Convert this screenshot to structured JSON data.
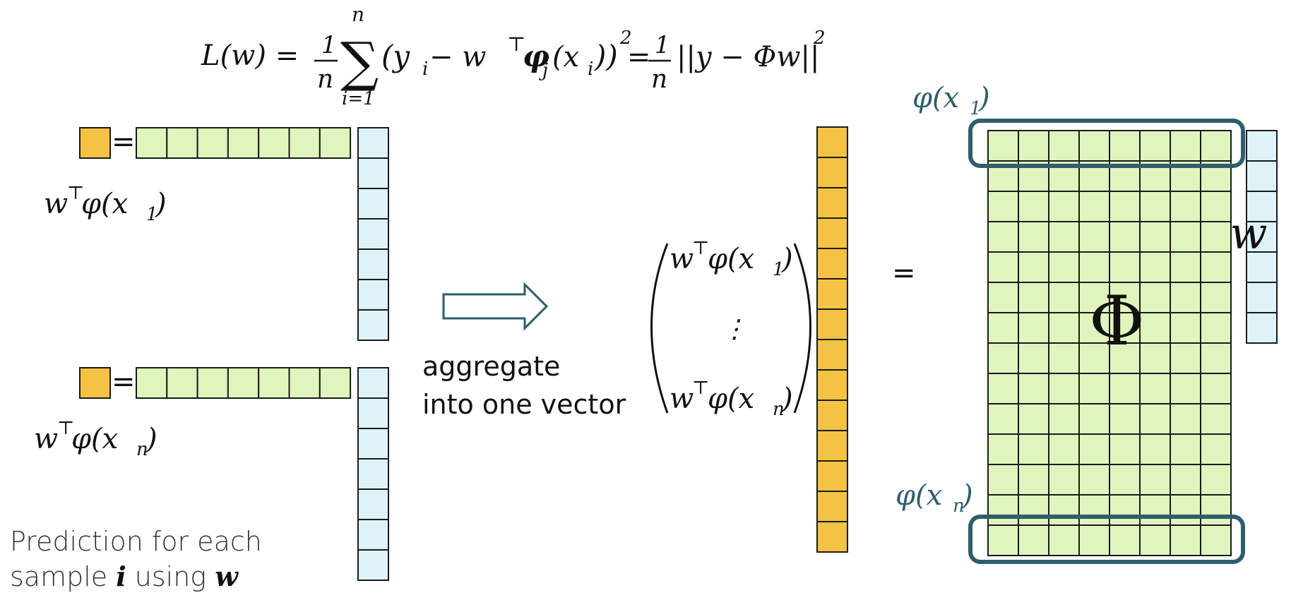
{
  "colors": {
    "orange": "#f5c343",
    "green": "#e0f5bd",
    "blue": "#def3f8",
    "stroke": "#1a1a1a",
    "teal": "#2e5e6b",
    "arrow": "#2e5e6b"
  },
  "equation": {
    "lhs": "L(w) = ",
    "frac1_num": "1",
    "frac1_den": "n",
    "sum_top": "n",
    "sum_bottom": "i=1",
    "body": "(y",
    "sub_i": "i",
    "minus_wT": " − w",
    "T": "⊤",
    "phi": "φ",
    "sub_j": "j",
    "x_open": "(x",
    "sub_i2": "i",
    "close": "))",
    "sq": "2",
    "eq2": " = ",
    "frac2_num": "1",
    "frac2_den": "n",
    "norm": "||y − Φw||",
    "sq2": "2"
  },
  "left": {
    "equals_top": "=",
    "equals_bottom": "=",
    "label_top": {
      "w": "w",
      "T": "⊤",
      "rest": "φ(x",
      "sub": "1",
      "close": ")"
    },
    "label_bottom": {
      "w": "w",
      "T": "⊤",
      "rest": "φ(x",
      "sub": "n",
      "close": ")"
    },
    "caption_line1": "Prediction for each",
    "caption_line2_a": "sample ",
    "caption_line2_i": "i",
    "caption_line2_b": " using ",
    "caption_line2_w": "w"
  },
  "middle": {
    "aggregate_line1": "aggregate",
    "aggregate_line2": "into one vector",
    "vec_top": {
      "w": "w",
      "T": "⊤",
      "rest": "φ(x",
      "sub": "1",
      "close": ")"
    },
    "vec_dots": "⋮",
    "vec_bottom": {
      "w": "w",
      "T": "⊤",
      "rest": "φ(x",
      "sub": "n",
      "close": ")"
    },
    "equals": "="
  },
  "right": {
    "phi_label_top": {
      "rest": "φ(x",
      "sub": "1",
      "close": ")"
    },
    "phi_label_bottom": {
      "rest": "φ(x",
      "sub": "n",
      "close": ")"
    },
    "big_phi": "Φ",
    "w_label": "w"
  }
}
